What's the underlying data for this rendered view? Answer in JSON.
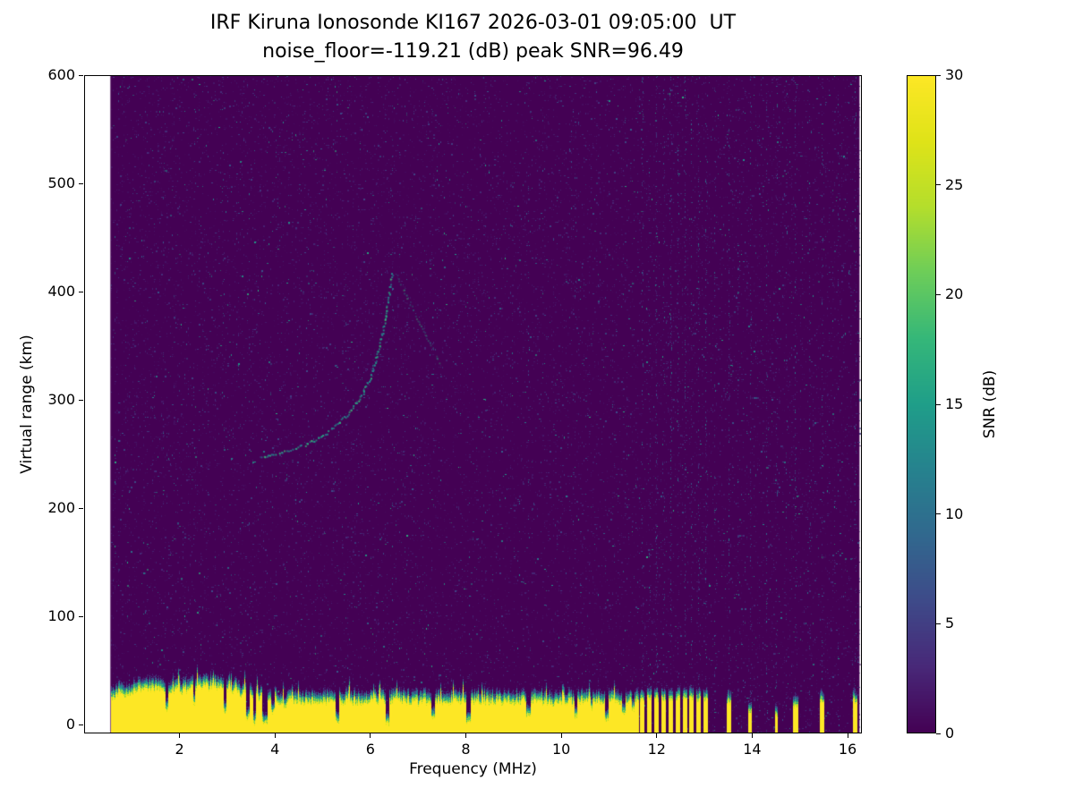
{
  "figure": {
    "title_line1": "IRF Kiruna Ionosonde KI167 2026-03-01 09:05:00  UT",
    "title_line2": "noise_floor=-119.21 (dB) peak SNR=96.49"
  },
  "chart_data": {
    "type": "heatmap",
    "title": "IRF Kiruna Ionosonde KI167 2026-03-01 09:05:00  UT",
    "subtitle": "noise_floor=-119.21 (dB) peak SNR=96.49",
    "station": "IRF Kiruna Ionosonde KI167",
    "timestamp_ut": "2026-03-01 09:05:00",
    "noise_floor_db": -119.21,
    "peak_snr_db": 96.49,
    "xlabel": "Frequency (MHz)",
    "ylabel": "Virtual range (km)",
    "xlim": [
      0,
      16.3
    ],
    "ylim": [
      -8,
      600
    ],
    "xticks": [
      2,
      4,
      6,
      8,
      10,
      12,
      14,
      16
    ],
    "yticks": [
      0,
      100,
      200,
      300,
      400,
      500,
      600
    ],
    "freq_range_mhz": [
      0.55,
      16.25
    ],
    "colorbar": {
      "label": "SNR (dB)",
      "min": 0,
      "max": 30,
      "ticks": [
        0,
        5,
        10,
        15,
        20,
        25,
        30
      ],
      "colormap": "viridis"
    },
    "ground_return": {
      "base_top_km": 28,
      "solid_until_mhz": 11.62,
      "notches": [
        [
          1.72,
          0.03,
          14
        ],
        [
          2.3,
          0.025,
          20
        ],
        [
          2.95,
          0.03,
          12
        ],
        [
          3.42,
          0.04,
          6
        ],
        [
          3.56,
          0.03,
          2
        ],
        [
          3.78,
          0.05,
          3
        ],
        [
          3.95,
          0.03,
          12
        ],
        [
          4.2,
          0.03,
          16
        ],
        [
          4.55,
          0.02,
          20
        ],
        [
          5.3,
          0.04,
          3
        ],
        [
          5.62,
          0.02,
          18
        ],
        [
          6.35,
          0.04,
          2
        ],
        [
          7.0,
          0.02,
          18
        ],
        [
          7.3,
          0.035,
          8
        ],
        [
          8.05,
          0.045,
          2
        ],
        [
          8.6,
          0.02,
          20
        ],
        [
          9.3,
          0.05,
          10
        ],
        [
          9.82,
          0.02,
          18
        ],
        [
          10.3,
          0.035,
          8
        ],
        [
          10.62,
          0.02,
          16
        ],
        [
          10.95,
          0.035,
          4
        ],
        [
          11.3,
          0.035,
          10
        ],
        [
          11.5,
          0.025,
          14
        ]
      ],
      "bars": [
        [
          11.68,
          0.05,
          26
        ],
        [
          11.83,
          0.05,
          27
        ],
        [
          11.98,
          0.05,
          26
        ],
        [
          12.13,
          0.05,
          27
        ],
        [
          12.28,
          0.05,
          26
        ],
        [
          12.43,
          0.05,
          27
        ],
        [
          12.58,
          0.05,
          26
        ],
        [
          12.72,
          0.05,
          27
        ],
        [
          12.87,
          0.05,
          26
        ],
        [
          13.02,
          0.05,
          26
        ],
        [
          13.5,
          0.05,
          23
        ],
        [
          13.95,
          0.04,
          14
        ],
        [
          14.5,
          0.035,
          10
        ],
        [
          14.9,
          0.05,
          21
        ],
        [
          15.45,
          0.05,
          23
        ],
        [
          16.15,
          0.05,
          24
        ]
      ]
    },
    "echo_trace": {
      "snr_db_approx": 12,
      "points_mhz_km": [
        [
          3.72,
          247
        ],
        [
          4.0,
          250
        ],
        [
          4.3,
          254
        ],
        [
          4.62,
          259
        ],
        [
          4.95,
          266
        ],
        [
          5.25,
          276
        ],
        [
          5.55,
          289
        ],
        [
          5.8,
          304
        ],
        [
          6.0,
          323
        ],
        [
          6.17,
          348
        ],
        [
          6.3,
          376
        ],
        [
          6.4,
          403
        ],
        [
          6.45,
          418
        ]
      ]
    },
    "echo_trace_secondary": {
      "points_mhz_km": [
        [
          6.55,
          415
        ],
        [
          6.8,
          392
        ],
        [
          7.05,
          368
        ],
        [
          7.3,
          348
        ],
        [
          7.45,
          334
        ]
      ]
    },
    "rfi_stripes": [
      [
        11.68,
        0.22
      ],
      [
        11.83,
        0.18
      ],
      [
        11.98,
        0.25
      ],
      [
        12.13,
        0.2
      ],
      [
        12.28,
        0.3
      ],
      [
        12.43,
        0.22
      ],
      [
        12.58,
        0.28
      ],
      [
        12.72,
        0.2
      ],
      [
        12.87,
        0.25
      ],
      [
        13.02,
        0.22
      ],
      [
        13.2,
        0.12
      ],
      [
        13.5,
        0.25
      ],
      [
        13.7,
        0.1
      ],
      [
        13.95,
        0.18
      ],
      [
        14.3,
        0.15
      ],
      [
        14.5,
        0.12
      ],
      [
        14.7,
        0.1
      ],
      [
        14.9,
        0.22
      ],
      [
        15.2,
        0.1
      ],
      [
        15.45,
        0.2
      ],
      [
        15.8,
        0.1
      ],
      [
        16.15,
        0.2
      ]
    ],
    "faint_stripes": [
      [
        1.65,
        0.06
      ],
      [
        2.3,
        0.05
      ],
      [
        2.9,
        0.05
      ],
      [
        3.45,
        0.05
      ],
      [
        6.45,
        0.07
      ],
      [
        7.3,
        0.07
      ],
      [
        9.3,
        0.05
      ],
      [
        10.3,
        0.05
      ]
    ]
  },
  "colors": {
    "background": "#ffffff",
    "axis": "#000000",
    "cmap_low": "#440154",
    "cmap_mid": "#21918c",
    "cmap_high": "#fde725"
  }
}
